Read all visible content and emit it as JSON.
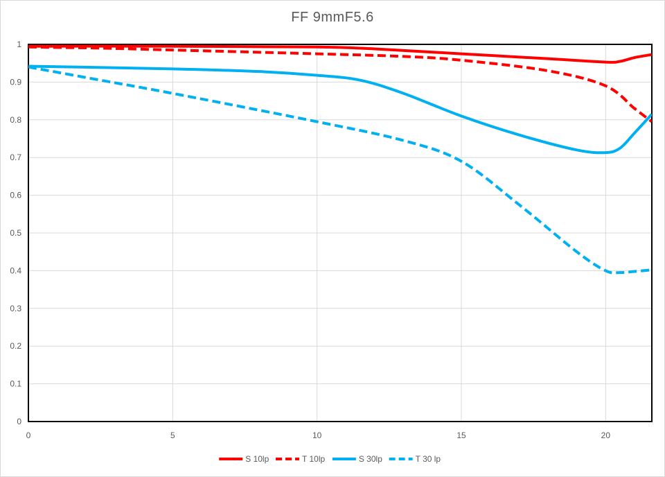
{
  "chart_data": {
    "type": "line",
    "title": "FF  9mmF5.6",
    "xlabel": "",
    "ylabel": "",
    "xlim": [
      0,
      21.6
    ],
    "ylim": [
      0,
      1
    ],
    "x_ticks": [
      "0",
      "5",
      "10",
      "15",
      "20"
    ],
    "y_ticks": [
      "0",
      "0.1",
      "0.2",
      "0.3",
      "0.4",
      "0.5",
      "0.6",
      "0.7",
      "0.8",
      "0.9",
      "1"
    ],
    "grid": true,
    "legend_position": "bottom",
    "series": [
      {
        "name": "S 10lp",
        "color": "#ff0000",
        "dash": "solid",
        "points": [
          [
            0,
            0.995
          ],
          [
            5,
            0.995
          ],
          [
            10,
            0.993
          ],
          [
            12,
            0.988
          ],
          [
            15,
            0.975
          ],
          [
            18,
            0.962
          ],
          [
            20,
            0.953
          ],
          [
            20.5,
            0.955
          ],
          [
            21,
            0.965
          ],
          [
            21.6,
            0.973
          ]
        ]
      },
      {
        "name": "T 10lp",
        "color": "#ff0000",
        "dash": "dashed",
        "points": [
          [
            0,
            0.993
          ],
          [
            2.5,
            0.99
          ],
          [
            5,
            0.985
          ],
          [
            10,
            0.975
          ],
          [
            13,
            0.968
          ],
          [
            15,
            0.958
          ],
          [
            18,
            0.93
          ],
          [
            20,
            0.89
          ],
          [
            21,
            0.83
          ],
          [
            21.6,
            0.795
          ]
        ]
      },
      {
        "name": "S 30lp",
        "color": "#00b0f0",
        "dash": "solid",
        "points": [
          [
            0,
            0.942
          ],
          [
            5,
            0.935
          ],
          [
            8,
            0.928
          ],
          [
            10,
            0.918
          ],
          [
            11.5,
            0.905
          ],
          [
            13,
            0.87
          ],
          [
            15,
            0.81
          ],
          [
            17,
            0.76
          ],
          [
            19,
            0.72
          ],
          [
            20,
            0.713
          ],
          [
            20.5,
            0.725
          ],
          [
            21,
            0.765
          ],
          [
            21.6,
            0.815
          ]
        ]
      },
      {
        "name": "T 30 lp",
        "color": "#00b0f0",
        "dash": "dashed",
        "points": [
          [
            0,
            0.94
          ],
          [
            2.5,
            0.905
          ],
          [
            5,
            0.87
          ],
          [
            10,
            0.795
          ],
          [
            13,
            0.745
          ],
          [
            15,
            0.69
          ],
          [
            17,
            0.575
          ],
          [
            19,
            0.45
          ],
          [
            20,
            0.4
          ],
          [
            20.5,
            0.395
          ],
          [
            21,
            0.398
          ],
          [
            21.6,
            0.402
          ]
        ]
      }
    ]
  }
}
